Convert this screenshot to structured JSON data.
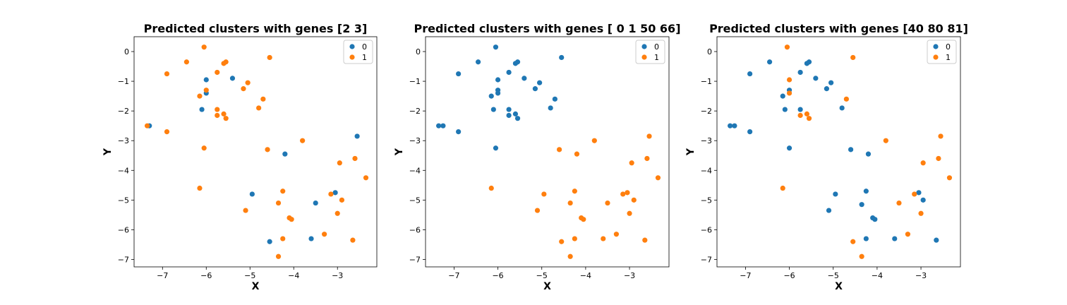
{
  "chart_data": [
    {
      "type": "scatter",
      "title": "Predicted clusters with genes [2 3]",
      "xlabel": "X",
      "ylabel": "Y",
      "xlim": [
        -7.65,
        -2.1
      ],
      "ylim": [
        -7.25,
        0.5
      ],
      "xticks": [
        -7,
        -6,
        -5,
        -4,
        -3
      ],
      "yticks": [
        0,
        -1,
        -2,
        -3,
        -4,
        -5,
        -6,
        -7
      ],
      "legend_position": "top-right",
      "series": [
        {
          "name": "0",
          "color": "#1f77b4",
          "points": [
            [
              -7.3,
              -2.5
            ],
            [
              -6.0,
              -0.95
            ],
            [
              -6.0,
              -1.4
            ],
            [
              -6.1,
              -1.95
            ],
            [
              -5.4,
              -0.9
            ],
            [
              -4.2,
              -3.45
            ],
            [
              -4.95,
              -4.8
            ],
            [
              -3.05,
              -4.75
            ],
            [
              -3.5,
              -5.1
            ],
            [
              -3.6,
              -6.3
            ],
            [
              -4.55,
              -6.4
            ],
            [
              -2.55,
              -2.85
            ]
          ]
        },
        {
          "name": "1",
          "color": "#ff7f0e",
          "points": [
            [
              -6.05,
              0.15
            ],
            [
              -6.45,
              -0.35
            ],
            [
              -6.9,
              -0.75
            ],
            [
              -5.55,
              -0.35
            ],
            [
              -5.6,
              -0.4
            ],
            [
              -4.55,
              -0.2
            ],
            [
              -5.75,
              -0.7
            ],
            [
              -5.05,
              -1.05
            ],
            [
              -5.15,
              -1.25
            ],
            [
              -6.15,
              -1.5
            ],
            [
              -6.0,
              -1.3
            ],
            [
              -4.7,
              -1.6
            ],
            [
              -5.75,
              -1.95
            ],
            [
              -5.75,
              -2.15
            ],
            [
              -5.6,
              -2.1
            ],
            [
              -5.55,
              -2.25
            ],
            [
              -4.8,
              -1.9
            ],
            [
              -7.35,
              -2.5
            ],
            [
              -6.9,
              -2.7
            ],
            [
              -6.05,
              -3.25
            ],
            [
              -4.6,
              -3.3
            ],
            [
              -3.8,
              -3.0
            ],
            [
              -2.95,
              -3.75
            ],
            [
              -2.6,
              -3.6
            ],
            [
              -2.35,
              -4.25
            ],
            [
              -6.15,
              -4.6
            ],
            [
              -4.25,
              -4.7
            ],
            [
              -3.15,
              -4.8
            ],
            [
              -2.9,
              -5.0
            ],
            [
              -4.35,
              -5.1
            ],
            [
              -5.1,
              -5.35
            ],
            [
              -4.1,
              -5.6
            ],
            [
              -4.05,
              -5.65
            ],
            [
              -3.0,
              -5.45
            ],
            [
              -3.3,
              -6.15
            ],
            [
              -4.25,
              -6.3
            ],
            [
              -2.65,
              -6.35
            ],
            [
              -4.35,
              -6.9
            ]
          ]
        }
      ]
    },
    {
      "type": "scatter",
      "title": "Predicted clusters with genes [ 0  1 50 66]",
      "xlabel": "X",
      "ylabel": "Y",
      "xlim": [
        -7.65,
        -2.1
      ],
      "ylim": [
        -7.25,
        0.5
      ],
      "xticks": [
        -7,
        -6,
        -5,
        -4,
        -3
      ],
      "yticks": [
        0,
        -1,
        -2,
        -3,
        -4,
        -5,
        -6,
        -7
      ],
      "legend_position": "top-right",
      "series": [
        {
          "name": "0",
          "color": "#1f77b4",
          "points": [
            [
              -6.05,
              0.15
            ],
            [
              -6.45,
              -0.35
            ],
            [
              -6.9,
              -0.75
            ],
            [
              -5.55,
              -0.35
            ],
            [
              -5.6,
              -0.4
            ],
            [
              -4.55,
              -0.2
            ],
            [
              -5.75,
              -0.7
            ],
            [
              -6.0,
              -0.95
            ],
            [
              -5.4,
              -0.9
            ],
            [
              -5.05,
              -1.05
            ],
            [
              -5.15,
              -1.25
            ],
            [
              -6.15,
              -1.5
            ],
            [
              -6.0,
              -1.3
            ],
            [
              -6.0,
              -1.4
            ],
            [
              -4.7,
              -1.6
            ],
            [
              -6.1,
              -1.95
            ],
            [
              -5.75,
              -1.95
            ],
            [
              -5.75,
              -2.15
            ],
            [
              -5.6,
              -2.1
            ],
            [
              -5.55,
              -2.25
            ],
            [
              -4.8,
              -1.9
            ],
            [
              -7.35,
              -2.5
            ],
            [
              -7.25,
              -2.5
            ],
            [
              -6.9,
              -2.7
            ],
            [
              -6.05,
              -3.25
            ]
          ]
        },
        {
          "name": "1",
          "color": "#ff7f0e",
          "points": [
            [
              -4.6,
              -3.3
            ],
            [
              -4.2,
              -3.45
            ],
            [
              -3.8,
              -3.0
            ],
            [
              -2.95,
              -3.75
            ],
            [
              -2.55,
              -2.85
            ],
            [
              -2.6,
              -3.6
            ],
            [
              -2.35,
              -4.25
            ],
            [
              -6.15,
              -4.6
            ],
            [
              -4.25,
              -4.7
            ],
            [
              -4.95,
              -4.8
            ],
            [
              -3.15,
              -4.8
            ],
            [
              -3.05,
              -4.75
            ],
            [
              -2.9,
              -5.0
            ],
            [
              -3.5,
              -5.1
            ],
            [
              -4.35,
              -5.1
            ],
            [
              -5.1,
              -5.35
            ],
            [
              -4.1,
              -5.6
            ],
            [
              -4.05,
              -5.65
            ],
            [
              -3.0,
              -5.45
            ],
            [
              -3.3,
              -6.15
            ],
            [
              -3.6,
              -6.3
            ],
            [
              -4.25,
              -6.3
            ],
            [
              -4.55,
              -6.4
            ],
            [
              -2.65,
              -6.35
            ],
            [
              -4.35,
              -6.9
            ]
          ]
        }
      ]
    },
    {
      "type": "scatter",
      "title": "Predicted clusters with genes [40 80 81]",
      "xlabel": "X",
      "ylabel": "Y",
      "xlim": [
        -7.65,
        -2.1
      ],
      "ylim": [
        -7.25,
        0.5
      ],
      "xticks": [
        -7,
        -6,
        -5,
        -4,
        -3
      ],
      "yticks": [
        0,
        -1,
        -2,
        -3,
        -4,
        -5,
        -6,
        -7
      ],
      "legend_position": "top-right",
      "series": [
        {
          "name": "0",
          "color": "#1f77b4",
          "points": [
            [
              -6.45,
              -0.35
            ],
            [
              -6.9,
              -0.75
            ],
            [
              -5.55,
              -0.35
            ],
            [
              -5.6,
              -0.4
            ],
            [
              -5.75,
              -0.7
            ],
            [
              -5.4,
              -0.9
            ],
            [
              -5.05,
              -1.05
            ],
            [
              -5.15,
              -1.25
            ],
            [
              -6.15,
              -1.5
            ],
            [
              -6.0,
              -1.3
            ],
            [
              -6.1,
              -1.95
            ],
            [
              -5.75,
              -1.95
            ],
            [
              -4.8,
              -1.9
            ],
            [
              -7.35,
              -2.5
            ],
            [
              -7.25,
              -2.5
            ],
            [
              -6.9,
              -2.7
            ],
            [
              -6.0,
              -3.25
            ],
            [
              -4.6,
              -3.3
            ],
            [
              -4.2,
              -3.45
            ],
            [
              -4.95,
              -4.8
            ],
            [
              -3.05,
              -4.75
            ],
            [
              -4.25,
              -4.7
            ],
            [
              -2.95,
              -5.0
            ],
            [
              -5.1,
              -5.35
            ],
            [
              -4.35,
              -5.15
            ],
            [
              -4.1,
              -5.6
            ],
            [
              -4.05,
              -5.65
            ],
            [
              -4.25,
              -6.3
            ],
            [
              -3.6,
              -6.3
            ],
            [
              -2.65,
              -6.35
            ]
          ]
        },
        {
          "name": "1",
          "color": "#ff7f0e",
          "points": [
            [
              -6.05,
              0.15
            ],
            [
              -4.55,
              -0.2
            ],
            [
              -6.0,
              -0.95
            ],
            [
              -6.0,
              -1.4
            ],
            [
              -4.7,
              -1.6
            ],
            [
              -5.75,
              -2.15
            ],
            [
              -5.6,
              -2.1
            ],
            [
              -5.55,
              -2.25
            ],
            [
              -3.8,
              -3.0
            ],
            [
              -2.55,
              -2.85
            ],
            [
              -2.95,
              -3.75
            ],
            [
              -2.6,
              -3.6
            ],
            [
              -2.35,
              -4.25
            ],
            [
              -6.15,
              -4.6
            ],
            [
              -3.15,
              -4.8
            ],
            [
              -3.5,
              -5.1
            ],
            [
              -3.0,
              -5.45
            ],
            [
              -3.3,
              -6.15
            ],
            [
              -4.55,
              -6.4
            ],
            [
              -4.35,
              -6.9
            ]
          ]
        }
      ]
    }
  ]
}
